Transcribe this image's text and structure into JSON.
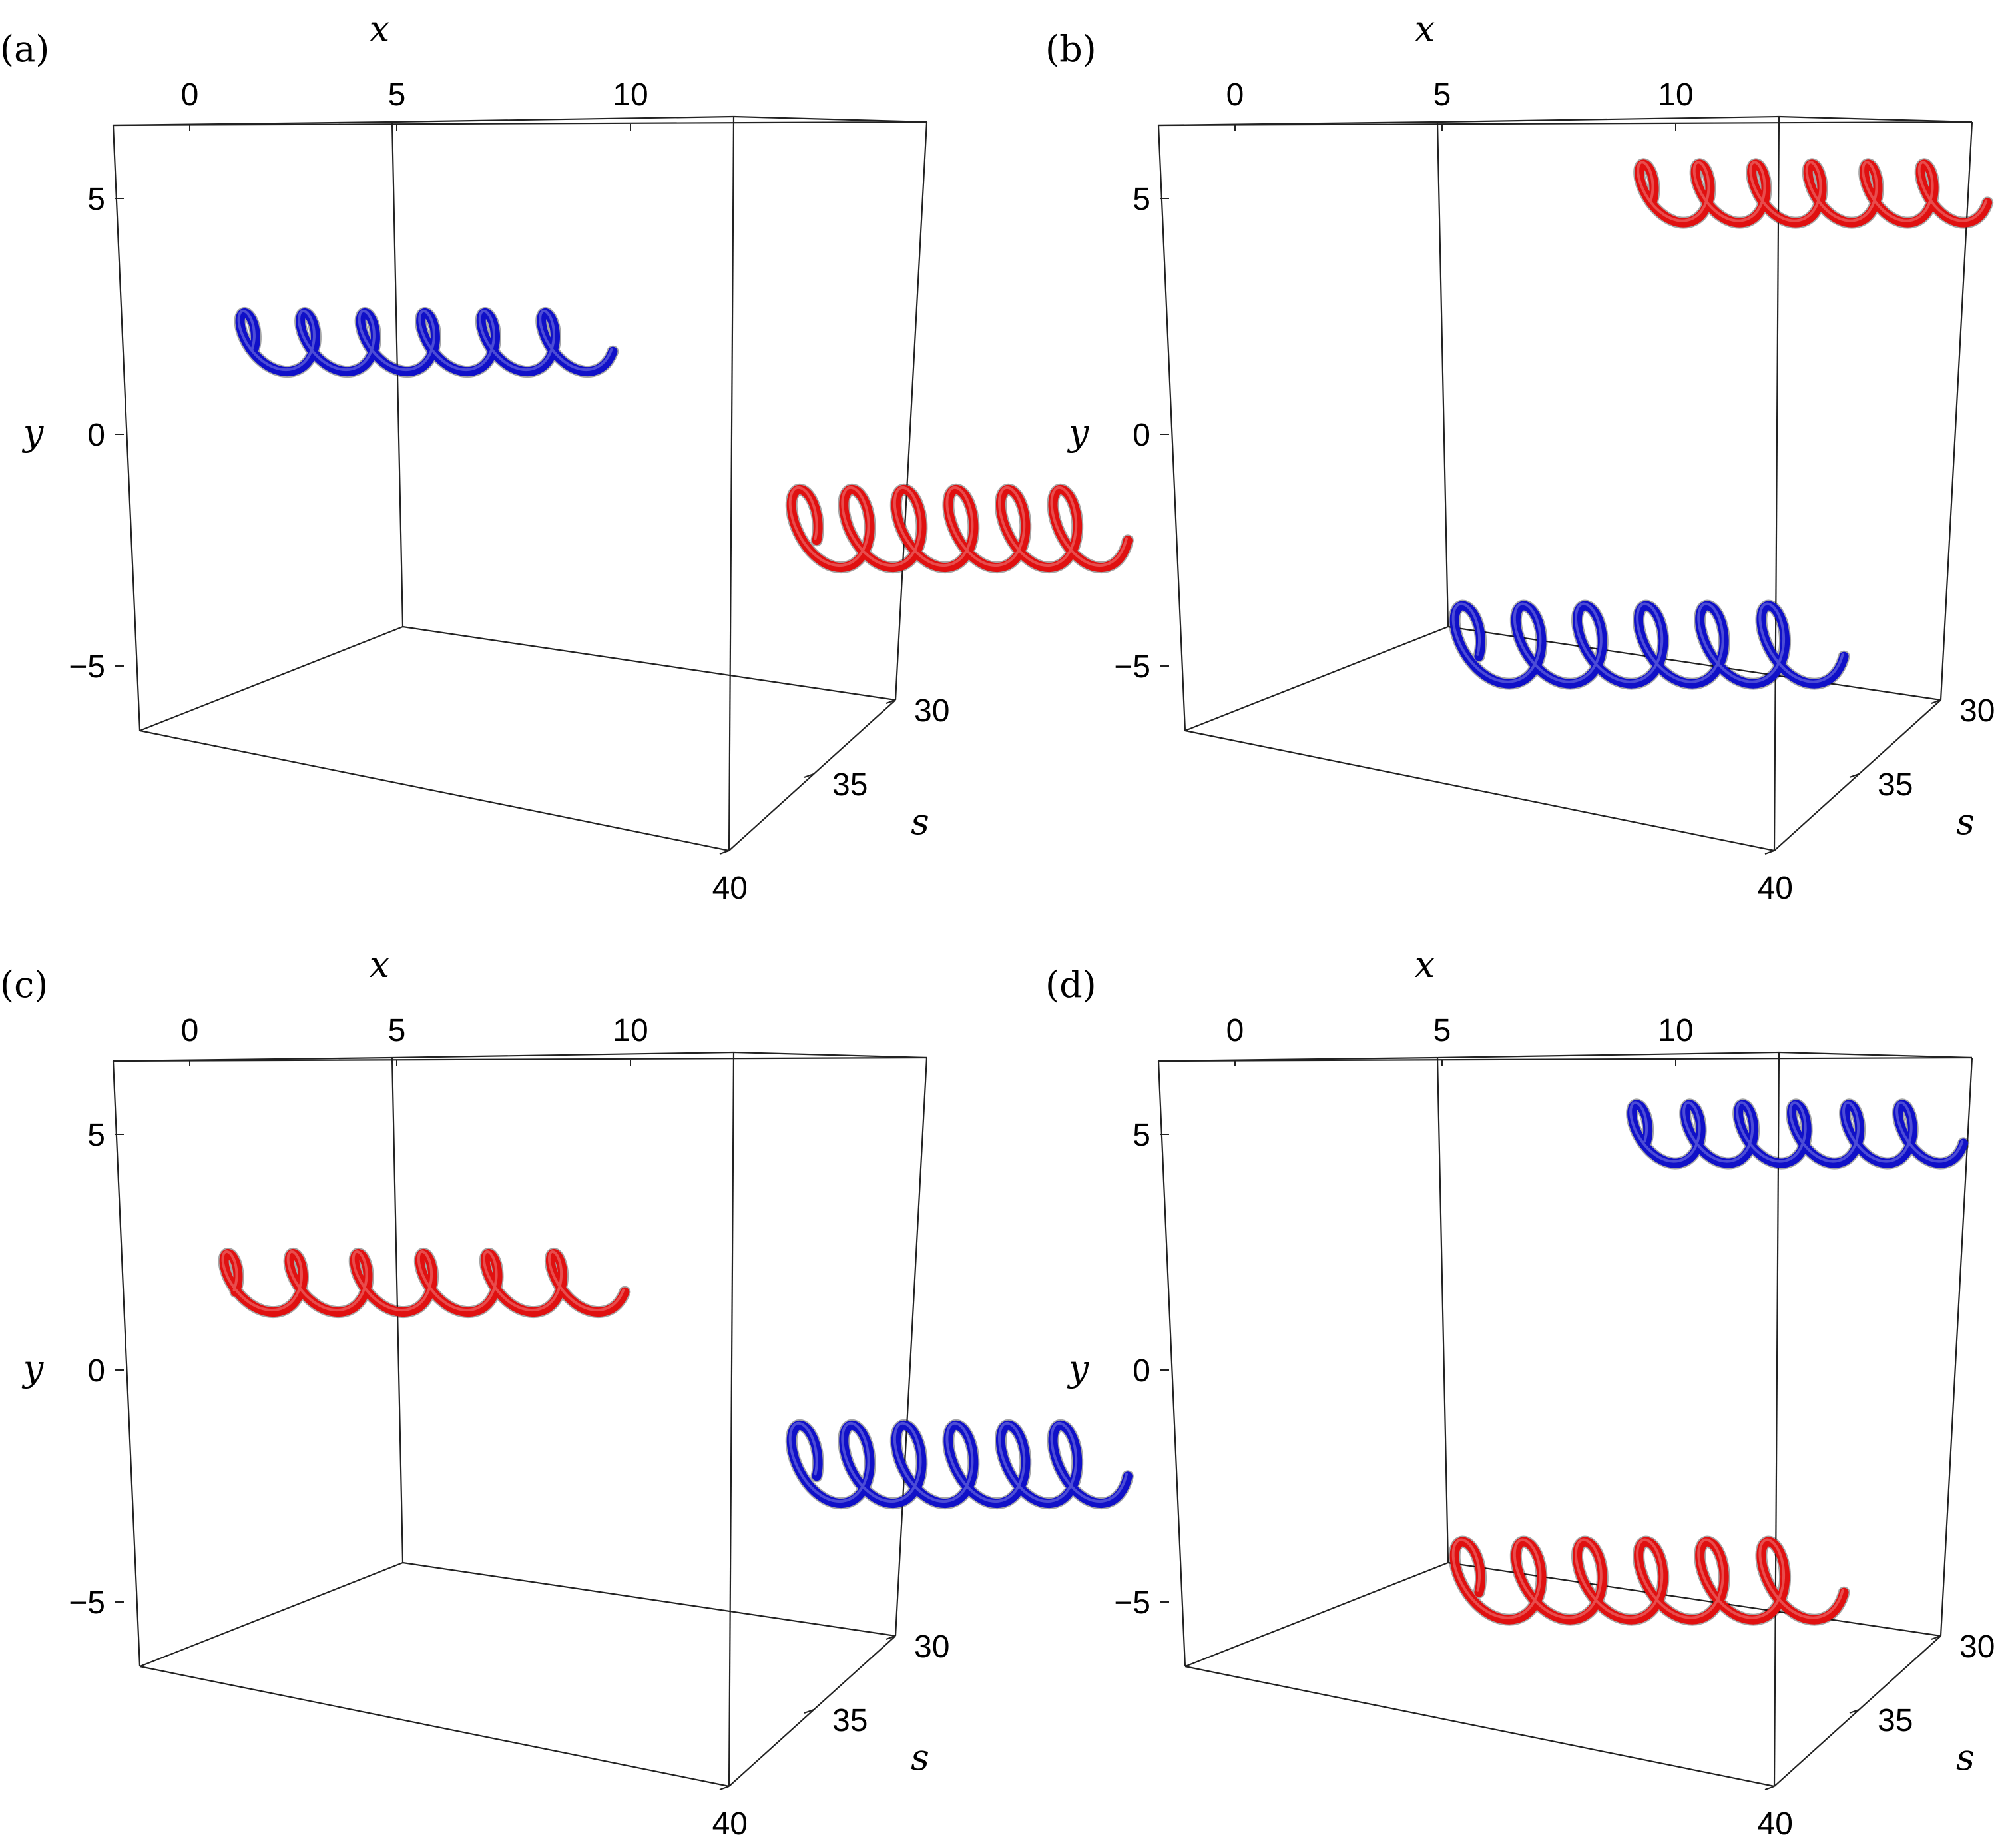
{
  "colors": {
    "blue": "#1010c8",
    "red": "#e01010",
    "box": "#222222"
  },
  "chart_data": [
    {
      "panel": "(a)",
      "type": "line",
      "axes": {
        "xlabel": "x",
        "ylabel": "y",
        "zlabel": "s",
        "x_ticks": [
          "0",
          "5",
          "10"
        ],
        "y_ticks": [
          "5",
          "0",
          "−5"
        ],
        "z_ticks": [
          "30",
          "35",
          "40"
        ],
        "xlim": [
          -1.5,
          12
        ],
        "ylim": [
          -6.5,
          6.5
        ],
        "zlim": [
          28,
          40
        ]
      },
      "series": [
        {
          "color": "blue",
          "x_range": [
            0.5,
            6.5
          ],
          "y_center": 2.0,
          "turns": 6,
          "radius": 0.6
        },
        {
          "color": "red",
          "x_range": [
            9.8,
            15.0
          ],
          "y_center": -2.0,
          "turns": 6,
          "radius": 0.8
        }
      ]
    },
    {
      "panel": "(b)",
      "type": "line",
      "axes": {
        "xlabel": "x",
        "ylabel": "y",
        "zlabel": "s",
        "x_ticks": [
          "0",
          "5",
          "10"
        ],
        "y_ticks": [
          "5",
          "0",
          "−5"
        ],
        "z_ticks": [
          "30",
          "35",
          "40"
        ],
        "xlim": [
          -1.5,
          12
        ],
        "ylim": [
          -6.5,
          6.5
        ],
        "zlim": [
          28,
          40
        ]
      },
      "series": [
        {
          "color": "red",
          "x_range": [
            6.4,
            12.0
          ],
          "y_center": 5.2,
          "turns": 6,
          "radius": 0.6
        },
        {
          "color": "blue",
          "x_range": [
            3.4,
            9.5
          ],
          "y_center": -4.5,
          "turns": 6,
          "radius": 0.8
        }
      ]
    },
    {
      "panel": "(c)",
      "type": "line",
      "axes": {
        "xlabel": "x",
        "ylabel": "y",
        "zlabel": "s",
        "x_ticks": [
          "0",
          "5",
          "10"
        ],
        "y_ticks": [
          "5",
          "0",
          "−5"
        ],
        "z_ticks": [
          "30",
          "35",
          "40"
        ],
        "xlim": [
          -1.5,
          12
        ],
        "ylim": [
          -6.5,
          6.5
        ],
        "zlim": [
          28,
          40
        ]
      },
      "series": [
        {
          "color": "red",
          "x_range": [
            0.2,
            6.7
          ],
          "y_center": 1.9,
          "turns": 6,
          "radius": 0.6
        },
        {
          "color": "blue",
          "x_range": [
            9.8,
            15.0
          ],
          "y_center": -2.0,
          "turns": 6,
          "radius": 0.8
        }
      ]
    },
    {
      "panel": "(d)",
      "type": "line",
      "axes": {
        "xlabel": "x",
        "ylabel": "y",
        "zlabel": "s",
        "x_ticks": [
          "0",
          "5",
          "10"
        ],
        "y_ticks": [
          "5",
          "0",
          "−5"
        ],
        "z_ticks": [
          "30",
          "35",
          "40"
        ],
        "xlim": [
          -1.5,
          12
        ],
        "ylim": [
          -6.5,
          6.5
        ],
        "zlim": [
          28,
          40
        ]
      },
      "series": [
        {
          "color": "blue",
          "x_range": [
            6.3,
            11.6
          ],
          "y_center": 5.1,
          "turns": 6,
          "radius": 0.6
        },
        {
          "color": "red",
          "x_range": [
            3.4,
            9.5
          ],
          "y_center": -4.5,
          "turns": 6,
          "radius": 0.8
        }
      ]
    }
  ]
}
